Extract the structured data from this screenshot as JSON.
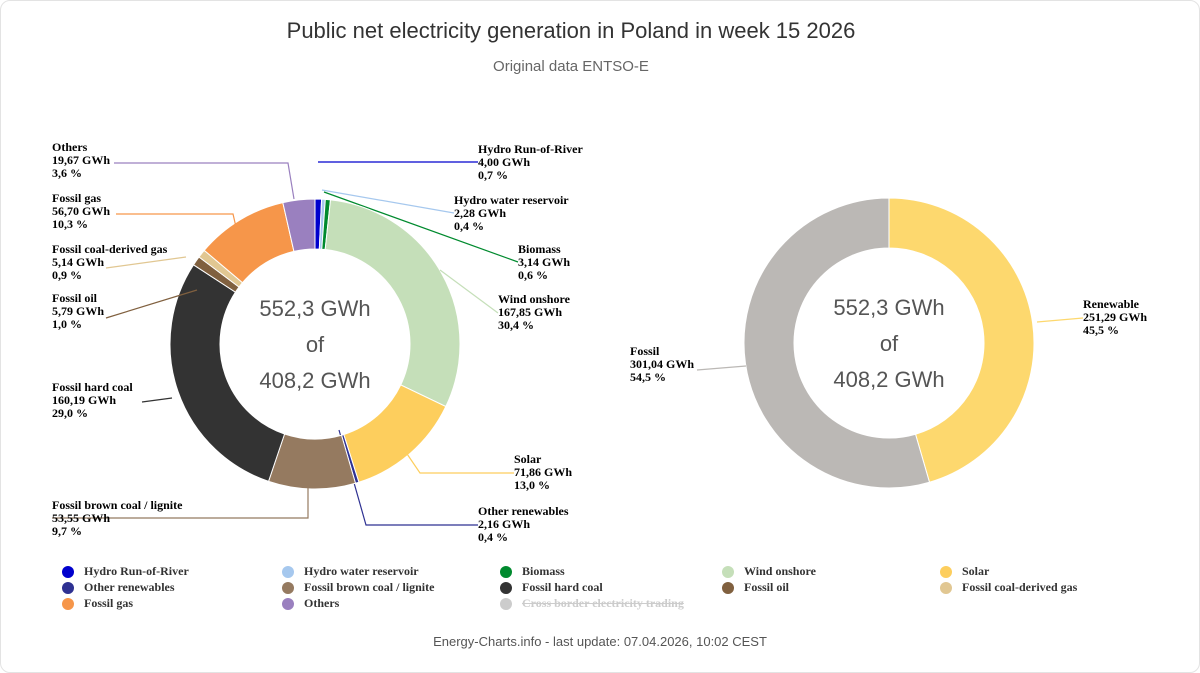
{
  "header": {
    "title": "Public net electricity generation in Poland in week 15 2026",
    "subtitle": "Original data ENTSO-E"
  },
  "chart_data": [
    {
      "type": "pie",
      "name": "Sources",
      "center_text": [
        "552,3 GWh",
        "of",
        "408,2 GWh"
      ],
      "slices": [
        {
          "name": "Hydro Run-of-River",
          "value": "4,00 GWh",
          "percent": "0,7 %",
          "v": 4.0,
          "color": "#0000cd"
        },
        {
          "name": "Hydro water reservoir",
          "value": "2,28 GWh",
          "percent": "0,4 %",
          "v": 2.28,
          "color": "#a6c8ee"
        },
        {
          "name": "Biomass",
          "value": "3,14 GWh",
          "percent": "0,6 %",
          "v": 3.14,
          "color": "#008a2e"
        },
        {
          "name": "Wind onshore",
          "value": "167,85 GWh",
          "percent": "30,4 %",
          "v": 167.85,
          "color": "#c5dfb9"
        },
        {
          "name": "Solar",
          "value": "71,86 GWh",
          "percent": "13,0 %",
          "v": 71.86,
          "color": "#fdce5d"
        },
        {
          "name": "Other renewables",
          "value": "2,16 GWh",
          "percent": "0,4 %",
          "v": 2.16,
          "color": "#2e3192"
        },
        {
          "name": "Fossil brown coal / lignite",
          "value": "53,55 GWh",
          "percent": "9,7 %",
          "v": 53.55,
          "color": "#957a60"
        },
        {
          "name": "Fossil hard coal",
          "value": "160,19 GWh",
          "percent": "29,0 %",
          "v": 160.19,
          "color": "#333333"
        },
        {
          "name": "Fossil oil",
          "value": "5,79 GWh",
          "percent": "1,0 %",
          "v": 5.79,
          "color": "#80603f"
        },
        {
          "name": "Fossil coal-derived gas",
          "value": "5,14 GWh",
          "percent": "0,9 %",
          "v": 5.14,
          "color": "#e1c792"
        },
        {
          "name": "Fossil gas",
          "value": "56,70 GWh",
          "percent": "10,3 %",
          "v": 56.7,
          "color": "#f6964a"
        },
        {
          "name": "Others",
          "value": "19,67 GWh",
          "percent": "3,6 %",
          "v": 19.67,
          "color": "#9a80bf"
        }
      ]
    },
    {
      "type": "pie",
      "name": "Renewable vs fossil",
      "center_text": [
        "552,3 GWh",
        "of",
        "408,2 GWh"
      ],
      "slices": [
        {
          "name": "Renewable",
          "value": "251,29 GWh",
          "percent": "45,5 %",
          "v": 251.29,
          "color": "#fdd86e"
        },
        {
          "name": "Fossil",
          "value": "301,04 GWh",
          "percent": "54,5 %",
          "v": 301.04,
          "color": "#bbb8b5"
        }
      ]
    }
  ],
  "legend": [
    {
      "label": "Hydro Run-of-River",
      "color": "#0000cd",
      "enabled": true
    },
    {
      "label": "Hydro water reservoir",
      "color": "#a6c8ee",
      "enabled": true
    },
    {
      "label": "Biomass",
      "color": "#008a2e",
      "enabled": true
    },
    {
      "label": "Wind onshore",
      "color": "#c5dfb9",
      "enabled": true
    },
    {
      "label": "Solar",
      "color": "#fdce5d",
      "enabled": true
    },
    {
      "label": "Other renewables",
      "color": "#2e3192",
      "enabled": true
    },
    {
      "label": "Fossil brown coal / lignite",
      "color": "#957a60",
      "enabled": true
    },
    {
      "label": "Fossil hard coal",
      "color": "#333333",
      "enabled": true
    },
    {
      "label": "Fossil oil",
      "color": "#80603f",
      "enabled": true
    },
    {
      "label": "Fossil coal-derived gas",
      "color": "#e1c792",
      "enabled": true
    },
    {
      "label": "Fossil gas",
      "color": "#f6964a",
      "enabled": true
    },
    {
      "label": "Others",
      "color": "#9a80bf",
      "enabled": true
    },
    {
      "label": "Cross border electricity trading",
      "color": "#cccccc",
      "enabled": false
    }
  ],
  "credits": "Energy-Charts.info - last update: 07.04.2026, 10:02 CEST"
}
